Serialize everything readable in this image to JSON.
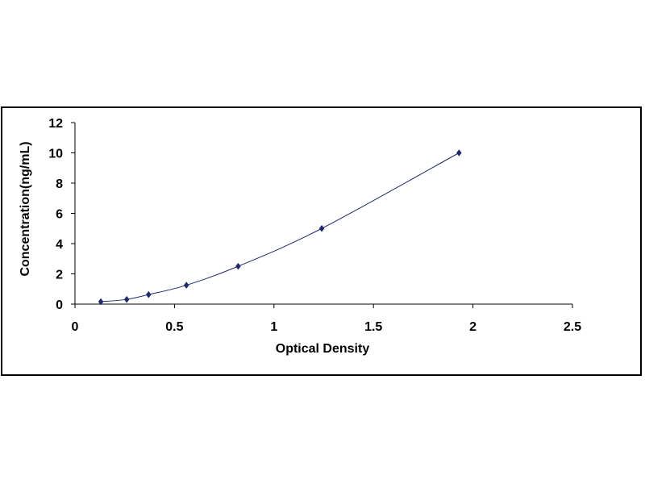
{
  "chart_data": {
    "type": "scatter",
    "title": "",
    "xlabel": "Optical Density",
    "ylabel": "Concentration(ng/mL)",
    "xlim": [
      0,
      2.5
    ],
    "ylim": [
      0,
      12
    ],
    "x_ticks": [
      "0",
      "0.5",
      "1",
      "1.5",
      "2",
      "2.5"
    ],
    "y_ticks": [
      "0",
      "2",
      "4",
      "6",
      "8",
      "10",
      "12"
    ],
    "grid": false,
    "legend": "none",
    "series": [
      {
        "x": [
          0.13,
          0.26,
          0.37,
          0.56,
          0.82,
          1.24,
          1.93
        ],
        "y": [
          0.16,
          0.31,
          0.63,
          1.25,
          2.5,
          5,
          10
        ],
        "marker": "diamond",
        "color": "#1f2a6b",
        "trendline": "polynomial"
      }
    ]
  }
}
